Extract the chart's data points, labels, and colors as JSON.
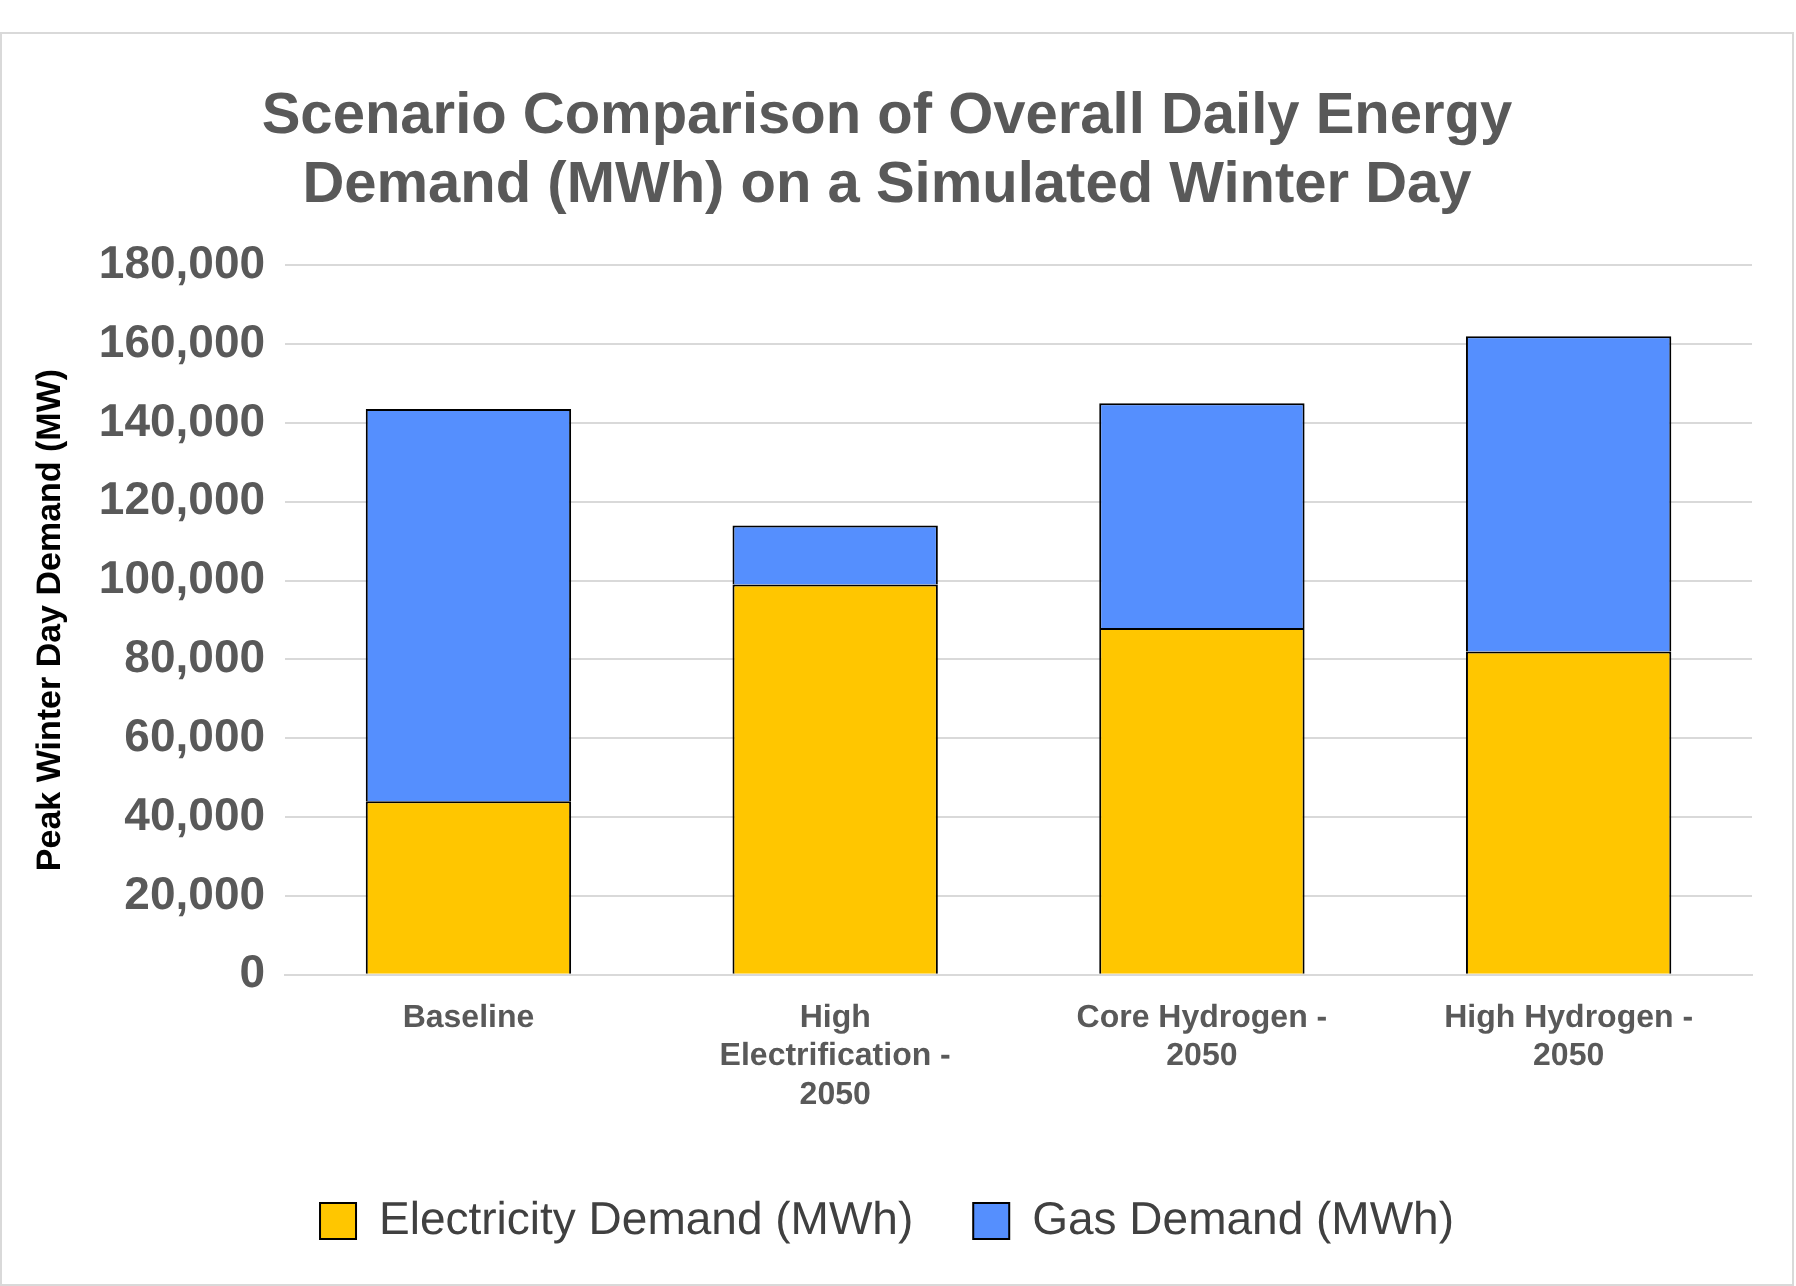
{
  "chart_data": {
    "type": "bar",
    "title": "Scenario Comparison of Overall Daily Energy Demand (MWh) on a Simulated Winter Day",
    "ylabel": "Peak Winter Day Demand (MW)",
    "categories": [
      "Baseline",
      "High Electrification - 2050",
      "Core Hydrogen - 2050",
      "High Hydrogen - 2050"
    ],
    "series": [
      {
        "name": "Electricity Demand (MWh)",
        "color": "#ffc600",
        "values": [
          44000,
          99000,
          88000,
          82000
        ]
      },
      {
        "name": "Gas Demand (MWh)",
        "color": "#558ffe",
        "values": [
          99500,
          15000,
          57000,
          80000
        ]
      }
    ],
    "stacked": true,
    "ylim": [
      0,
      180000
    ],
    "yticks": [
      0,
      {
        "value": 20000,
        "label": "20,000"
      },
      {
        "value": 40000,
        "label": "40,000"
      },
      {
        "value": 60000,
        "label": "60,000"
      },
      {
        "value": 80000,
        "label": "80,000"
      },
      {
        "value": 100000,
        "label": "100,000"
      },
      {
        "value": 120000,
        "label": "120,000"
      },
      {
        "value": 140000,
        "label": "140,000"
      },
      {
        "value": 160000,
        "label": "160,000"
      },
      {
        "value": 180000,
        "label": "180,000"
      }
    ],
    "grid": "y",
    "legend": "bottom"
  }
}
